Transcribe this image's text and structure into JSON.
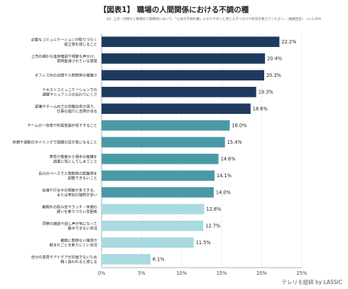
{
  "figure": {
    "title": "【図表1】 職場の人間関係における不調の種",
    "subtitle": "Q2. 上司・同僚など職場の人間関係において、「心身の不調の種」になりやすいと感じるきっかけや状況を教えてください。（複数回答）　n=1,009",
    "credit": "テレリモ総研 by LASSIC"
  },
  "colors": {
    "dark": "#1f3a5f",
    "mid": "#4a9aa6",
    "light": "#a9dae0",
    "axis": "#999999",
    "grid": "#d0d0d0"
  },
  "chart_data": {
    "type": "bar",
    "orientation": "horizontal",
    "categories": [
      [
        "必要なコミュニケーションが取りづらく",
        "孤立感を感じること"
      ],
      [
        "上司の細かな進捗確認や頻繁な声かけ、",
        "常時監視されている感覚"
      ],
      [
        "オフィス内の派閥や人間関係の複雑さ"
      ],
      [
        "テキストコミュニケーションでの",
        "誤解やニュアンスの伝わりにくさ"
      ],
      [
        "部署やチーム内での情報共有が滞り、",
        "仕事の進行に支障が出る"
      ],
      [
        "チームの一体感や所属意識が低下すること"
      ],
      [
        "休憩や退勤のタイミングで周囲の目が気になること"
      ],
      [
        "表情や態度から相手の機嫌を",
        "過度に気にしてしまうこと"
      ],
      [
        "自分のペースで人間関係の距離感を",
        "調整できないこと"
      ],
      [
        "会議や打合せの頻度が多すぎる、",
        "または参加の強制が多い"
      ],
      [
        "業務外の飲み会やランチ・休憩の",
        "誘いを断りづらい雰囲気"
      ],
      [
        "同僚の雑談や話し声が気になって",
        "集中できない状況"
      ],
      [
        "業績に関係ない雑用や",
        "頼まれごとを断りにくい状況"
      ],
      [
        "自分の意見やアイデアが対面でないため",
        "軽く扱われると感じる"
      ]
    ],
    "values": [
      22.2,
      20.4,
      20.3,
      19.3,
      18.6,
      16.0,
      15.4,
      14.6,
      14.1,
      14.0,
      12.8,
      12.7,
      11.5,
      6.1
    ],
    "value_labels": [
      "22.2%",
      "20.4%",
      "20.3%",
      "19.3%",
      "18.6%",
      "16.0%",
      "15.4%",
      "14.6%",
      "14.1%",
      "14.0%",
      "12.8%",
      "12.7%",
      "11.5%",
      "6.1%"
    ],
    "color_groups": [
      "dark",
      "dark",
      "dark",
      "dark",
      "dark",
      "mid",
      "mid",
      "mid",
      "mid",
      "mid",
      "light",
      "light",
      "light",
      "light"
    ],
    "xlim": [
      0,
      25
    ],
    "xticks": [
      0,
      5,
      10,
      15,
      20,
      25
    ],
    "xtick_labels": [
      "0%",
      "5%",
      "10%",
      "15%",
      "20%",
      "25%"
    ],
    "xlabel": "",
    "ylabel": "",
    "grid": true,
    "legend": "none"
  }
}
